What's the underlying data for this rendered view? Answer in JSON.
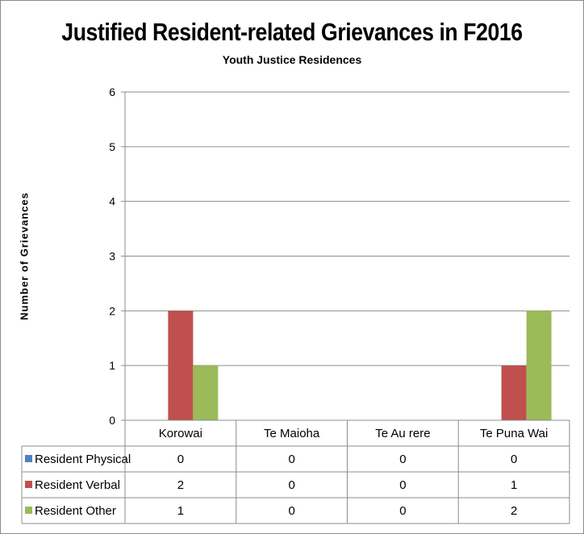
{
  "chart_data": {
    "type": "bar",
    "title": "Justified Resident-related Grievances in F2016",
    "subtitle": "Youth Justice Residences",
    "xlabel": "",
    "ylabel": "Number of Grievances",
    "ylim": [
      0,
      6
    ],
    "yticks": [
      "0",
      "1",
      "2",
      "3",
      "4",
      "5",
      "6"
    ],
    "grid": true,
    "legend": "data-table",
    "categories": [
      "Korowai",
      "Te Maioha",
      "Te Au rere",
      "Te Puna Wai"
    ],
    "series": [
      {
        "name": "Resident Physical",
        "color": "#4f81bd",
        "values": [
          0,
          0,
          0,
          0
        ]
      },
      {
        "name": "Resident Verbal",
        "color": "#c0504d",
        "values": [
          2,
          0,
          0,
          1
        ]
      },
      {
        "name": "Resident Other",
        "color": "#9bbb59",
        "values": [
          1,
          0,
          0,
          2
        ]
      }
    ]
  }
}
